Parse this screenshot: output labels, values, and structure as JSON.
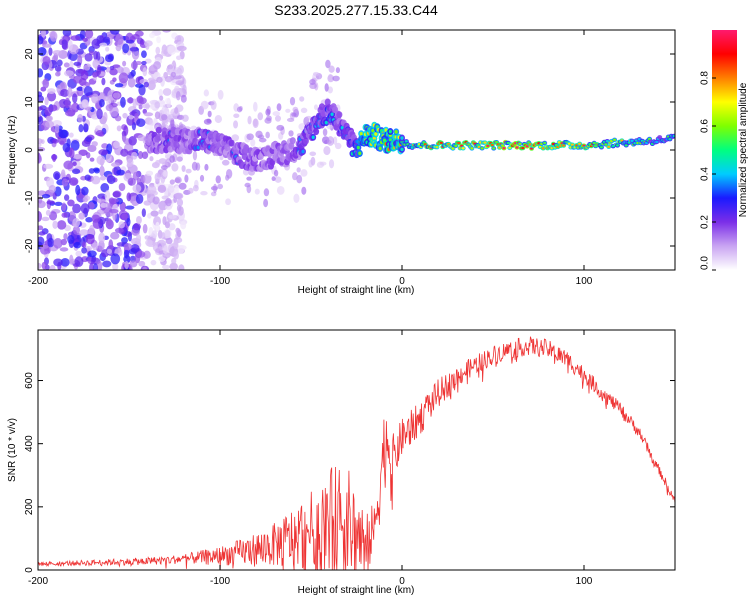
{
  "title": "S233.2025.277.15.33.C44",
  "chart_data": [
    {
      "type": "heatmap",
      "xlabel": "Height of straight line (km)",
      "ylabel": "Frequency (Hz)",
      "xlim": [
        -200,
        150
      ],
      "ylim": [
        -25,
        25
      ],
      "xticks": [
        -200,
        -100,
        0,
        100
      ],
      "yticks": [
        -20,
        -10,
        0,
        10,
        20
      ],
      "colorbar": {
        "label": "Normalized spectral amplitude",
        "range": [
          0,
          1
        ],
        "ticks": [
          "0.0",
          "0.2",
          "0.4",
          "0.6",
          "0.8"
        ],
        "colors": [
          "#ffffff",
          "#c9a4f2",
          "#7b2ee8",
          "#1a1aff",
          "#00ccff",
          "#00ff7f",
          "#7fff00",
          "#ffff00",
          "#ff7f00",
          "#ff0000",
          "#ff1a6e"
        ]
      },
      "noise_region": {
        "x": [
          -200,
          -140
        ],
        "y": [
          -25,
          25
        ],
        "amplitude": 0.25
      },
      "ridge": {
        "x": [
          -140,
          -130,
          -120,
          -110,
          -100,
          -90,
          -80,
          -70,
          -60,
          -55,
          -50,
          -45,
          -40,
          -35,
          -30,
          -25,
          -20,
          -15,
          -10,
          -5,
          0,
          5,
          10,
          20,
          40,
          60,
          80,
          100,
          120,
          140,
          150
        ],
        "freq": [
          2,
          2,
          2,
          2,
          1,
          -1,
          -2,
          -1,
          0,
          1,
          4,
          7,
          8,
          6,
          3,
          0,
          3,
          3,
          2,
          2,
          2,
          1,
          1,
          1,
          1,
          1,
          1,
          1,
          1.5,
          2,
          2.5
        ],
        "amplitude": [
          0.3,
          0.35,
          0.3,
          0.35,
          0.3,
          0.35,
          0.3,
          0.3,
          0.3,
          0.35,
          0.4,
          0.35,
          0.45,
          0.4,
          0.4,
          0.5,
          0.7,
          0.75,
          0.75,
          0.75,
          0.75,
          0.7,
          0.8,
          0.9,
          0.95,
          0.95,
          0.95,
          0.9,
          0.7,
          0.55,
          0.5
        ]
      }
    },
    {
      "type": "line",
      "xlabel": "Height of straight line (km)",
      "ylabel": "SNR (10 * v/v)",
      "xlim": [
        -200,
        150
      ],
      "ylim": [
        0,
        760
      ],
      "xticks": [
        -200,
        -100,
        0,
        100
      ],
      "yticks": [
        0,
        200,
        400,
        600
      ],
      "series": [
        {
          "name": "SNR",
          "color": "#ee3333",
          "x": [
            -200,
            -180,
            -160,
            -140,
            -120,
            -100,
            -90,
            -80,
            -70,
            -60,
            -50,
            -45,
            -40,
            -35,
            -30,
            -25,
            -20,
            -15,
            -12,
            -10,
            -8,
            -5,
            0,
            10,
            20,
            30,
            40,
            50,
            60,
            70,
            80,
            90,
            100,
            110,
            120,
            130,
            140,
            150
          ],
          "y": [
            20,
            22,
            25,
            28,
            35,
            45,
            55,
            65,
            80,
            100,
            130,
            140,
            160,
            170,
            150,
            120,
            80,
            130,
            300,
            370,
            420,
            350,
            420,
            480,
            560,
            610,
            650,
            680,
            700,
            710,
            700,
            670,
            620,
            560,
            510,
            440,
            330,
            220
          ],
          "noise": [
            5,
            8,
            10,
            12,
            15,
            30,
            40,
            55,
            70,
            100,
            120,
            140,
            160,
            170,
            180,
            150,
            120,
            80,
            150,
            140,
            110,
            80,
            60,
            55,
            45,
            35,
            30,
            30,
            30,
            30,
            30,
            30,
            25,
            25,
            20,
            20,
            15,
            15
          ]
        }
      ]
    }
  ]
}
